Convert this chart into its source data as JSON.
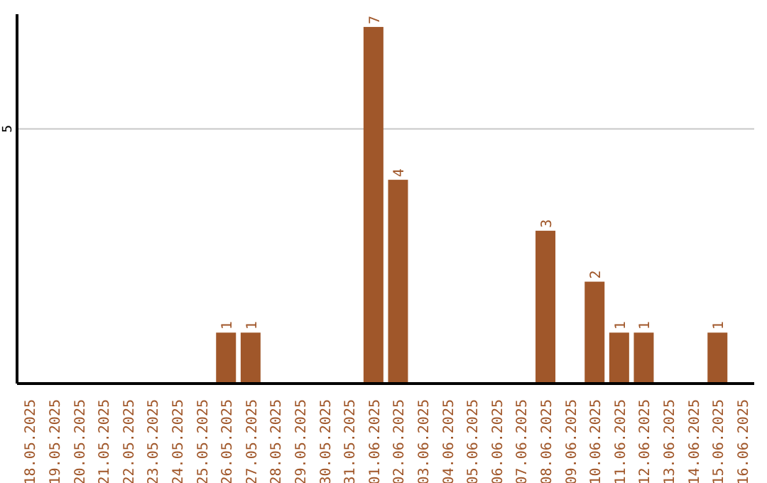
{
  "chart_data": {
    "type": "bar",
    "categories": [
      "18.05.2025",
      "19.05.2025",
      "20.05.2025",
      "21.05.2025",
      "22.05.2025",
      "23.05.2025",
      "24.05.2025",
      "25.05.2025",
      "26.05.2025",
      "27.05.2025",
      "28.05.2025",
      "29.05.2025",
      "30.05.2025",
      "31.05.2025",
      "01.06.2025",
      "02.06.2025",
      "03.06.2025",
      "04.06.2025",
      "05.06.2025",
      "06.06.2025",
      "07.06.2025",
      "08.06.2025",
      "09.06.2025",
      "10.06.2025",
      "11.06.2025",
      "12.06.2025",
      "13.06.2025",
      "14.06.2025",
      "15.06.2025",
      "16.06.2025"
    ],
    "values": [
      0,
      0,
      0,
      0,
      0,
      0,
      0,
      0,
      1,
      1,
      0,
      0,
      0,
      0,
      7,
      4,
      0,
      0,
      0,
      0,
      0,
      3,
      0,
      2,
      1,
      1,
      0,
      0,
      1,
      0
    ],
    "value_labels": [
      null,
      null,
      null,
      null,
      null,
      null,
      null,
      null,
      "1",
      "1",
      null,
      null,
      null,
      null,
      "7",
      "4",
      null,
      null,
      null,
      null,
      null,
      "3",
      null,
      "2",
      "1",
      "1",
      null,
      null,
      "1",
      null
    ],
    "color": "#a0572a",
    "ylim": [
      0,
      7.25
    ],
    "yticks": [
      5
    ],
    "grid": "y"
  }
}
